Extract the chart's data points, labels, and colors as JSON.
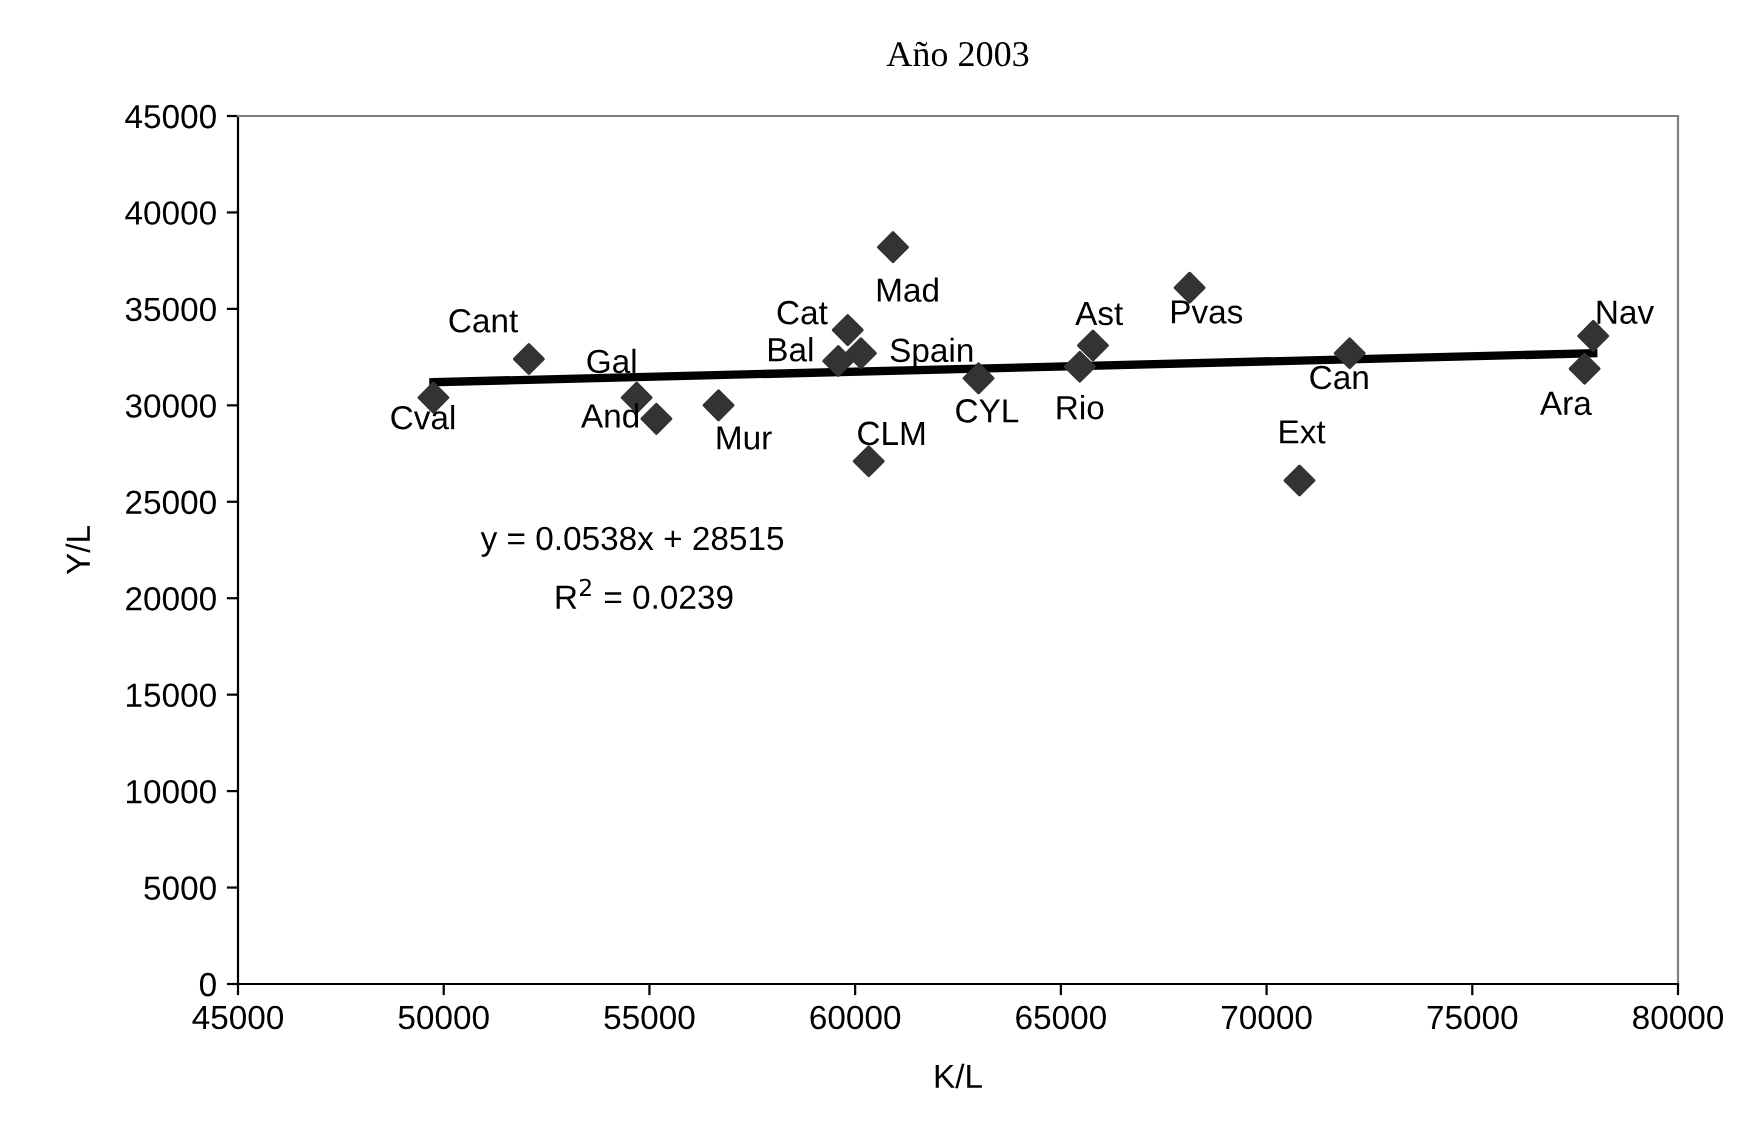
{
  "chart_data": {
    "type": "scatter",
    "title": "Año 2003",
    "xlabel": "K/L",
    "ylabel": "Y/L",
    "xlim": [
      45000,
      80000
    ],
    "xticks": [
      45000,
      50000,
      55000,
      60000,
      65000,
      70000,
      75000,
      80000
    ],
    "ylim": [
      0,
      45000
    ],
    "yticks": [
      0,
      5000,
      10000,
      15000,
      20000,
      25000,
      30000,
      35000,
      40000,
      45000
    ],
    "grid": false,
    "marker": "diamond",
    "series": [
      {
        "color": "#333333",
        "x": [
          49750,
          52070,
          54690,
          55170,
          56680,
          59820,
          59590,
          60140,
          60920,
          60330,
          63000,
          65460,
          65780,
          68130,
          72020,
          70800,
          77940,
          77730
        ],
        "values": [
          30400,
          32400,
          30400,
          29300,
          30000,
          33900,
          32300,
          32700,
          38200,
          27100,
          31400,
          32000,
          33100,
          36100,
          32700,
          26100,
          33600,
          31900
        ]
      },
      {
        "type": "line",
        "color": "#000000",
        "line_style": "solid",
        "marker": "none",
        "x": [
          49750,
          77940
        ],
        "values": [
          31200,
          32700
        ]
      }
    ],
    "annotations": [
      {
        "text": "Cval",
        "x": 49750,
        "y": 30400
      },
      {
        "text": "Cant",
        "x": 52070,
        "y": 32400
      },
      {
        "text": "Gal",
        "x": 54690,
        "y": 30400
      },
      {
        "text": "And",
        "x": 55170,
        "y": 29300
      },
      {
        "text": "Mur",
        "x": 56680,
        "y": 30000
      },
      {
        "text": "Cat",
        "x": 59820,
        "y": 33900
      },
      {
        "text": "Bal",
        "x": 59590,
        "y": 32300
      },
      {
        "text": "Spain",
        "x": 60140,
        "y": 32700
      },
      {
        "text": "Mad",
        "x": 60920,
        "y": 38200
      },
      {
        "text": "CLM",
        "x": 60330,
        "y": 27100
      },
      {
        "text": "CYL",
        "x": 63000,
        "y": 31400
      },
      {
        "text": "Rio",
        "x": 65460,
        "y": 32000
      },
      {
        "text": "Ast",
        "x": 65780,
        "y": 33100
      },
      {
        "text": "Pvas",
        "x": 68130,
        "y": 36100
      },
      {
        "text": "Can",
        "x": 72020,
        "y": 32700
      },
      {
        "text": "Ext",
        "x": 70800,
        "y": 26100
      },
      {
        "text": "Nav",
        "x": 77940,
        "y": 33600
      },
      {
        "text": "Ara",
        "x": 77730,
        "y": 31900
      },
      "y = 0.0538x + 28515",
      "R$^{2}$ = 0.0239"
    ]
  }
}
